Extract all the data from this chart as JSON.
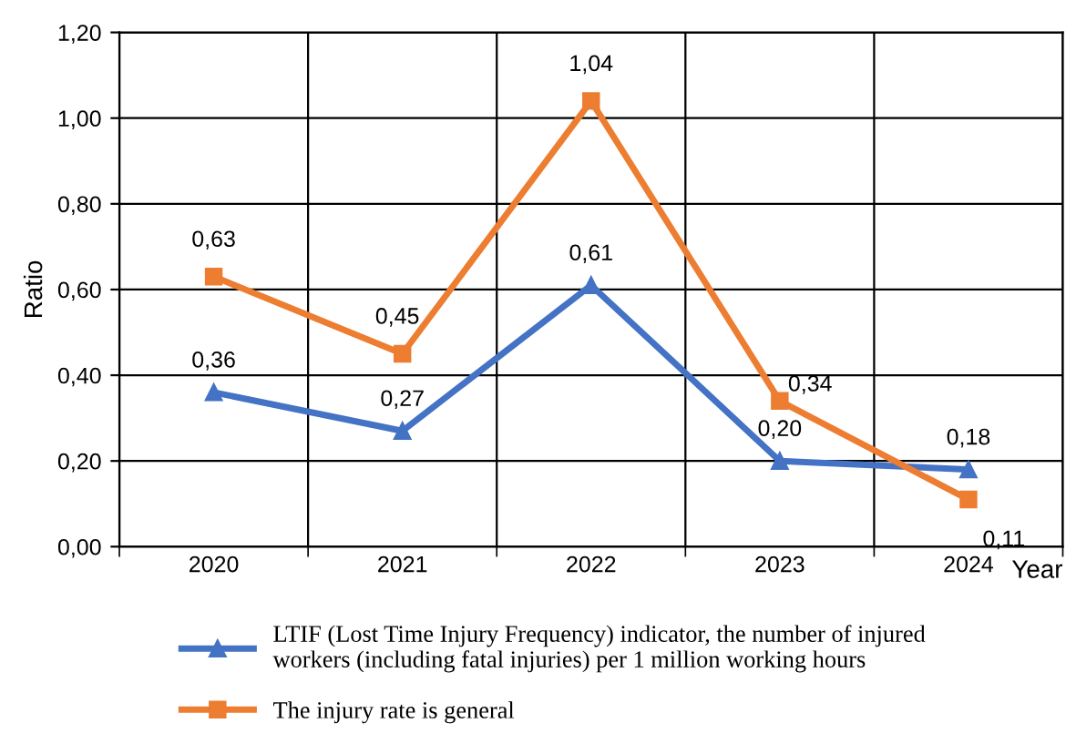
{
  "chart_data": {
    "type": "line",
    "xlabel": "Year",
    "ylabel": "Ratio",
    "categories": [
      "2020",
      "2021",
      "2022",
      "2023",
      "2024"
    ],
    "series": [
      {
        "name": "LTIF (Lost Time Injury Frequency) indicator, the number of injured\nworkers (including fatal injuries) per 1 million working hours",
        "color": "#4472c4",
        "marker": "triangle",
        "values": [
          0.36,
          0.27,
          0.61,
          0.2,
          0.18
        ],
        "value_labels": [
          "0,36",
          "0,27",
          "0,61",
          "0,20",
          "0,18"
        ]
      },
      {
        "name": "The injury rate is general",
        "color": "#ed7d31",
        "marker": "square",
        "values": [
          0.63,
          0.45,
          1.04,
          0.34,
          0.11
        ],
        "value_labels": [
          "0,63",
          "0,45",
          "1,04",
          "0,34",
          "0,11"
        ]
      }
    ],
    "ylim": [
      0,
      1.2
    ],
    "yticks": [
      {
        "value": 0,
        "label": "0,00"
      },
      {
        "value": 0.2,
        "label": "0,20"
      },
      {
        "value": 0.4,
        "label": "0,40"
      },
      {
        "value": 0.6,
        "label": "0,60"
      },
      {
        "value": 0.8,
        "label": "0,80"
      },
      {
        "value": 1.0,
        "label": "1,00"
      },
      {
        "value": 1.2,
        "label": "1,20"
      }
    ],
    "grid": true,
    "legend": "bottom",
    "line_style": "solid"
  }
}
